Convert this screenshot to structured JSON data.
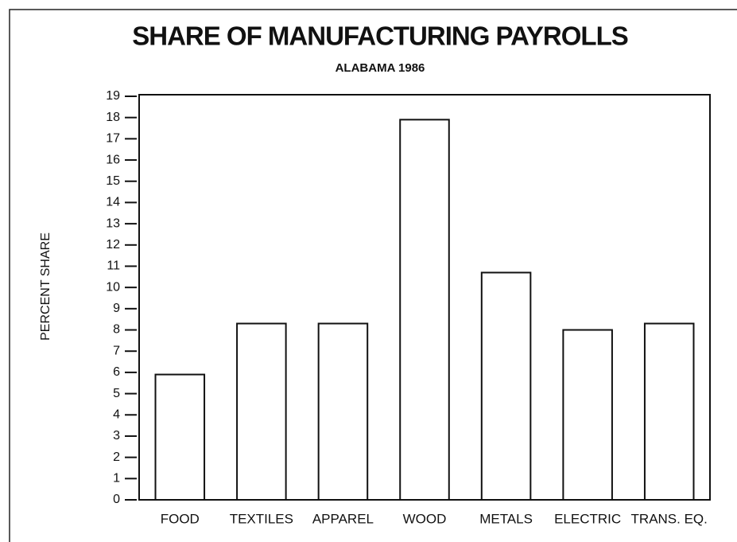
{
  "chart_data": {
    "type": "bar",
    "title": "SHARE OF MANUFACTURING PAYROLLS",
    "subtitle": "ALABAMA 1986",
    "y_label": "PERCENT SHARE",
    "categories": [
      "FOOD",
      "TEXTILES",
      "APPAREL",
      "WOOD",
      "METALS",
      "ELECTRIC",
      "TRANS. EQ."
    ],
    "values": [
      5.9,
      8.3,
      8.3,
      17.9,
      10.7,
      8.0,
      8.3
    ],
    "color": "#ffffff",
    "ylim": [
      0,
      19
    ],
    "yticks": [
      0,
      1,
      2,
      3,
      4,
      5,
      6,
      7,
      8,
      9,
      10,
      11,
      12,
      13,
      14,
      15,
      16,
      17,
      18,
      19
    ],
    "grid": false
  }
}
